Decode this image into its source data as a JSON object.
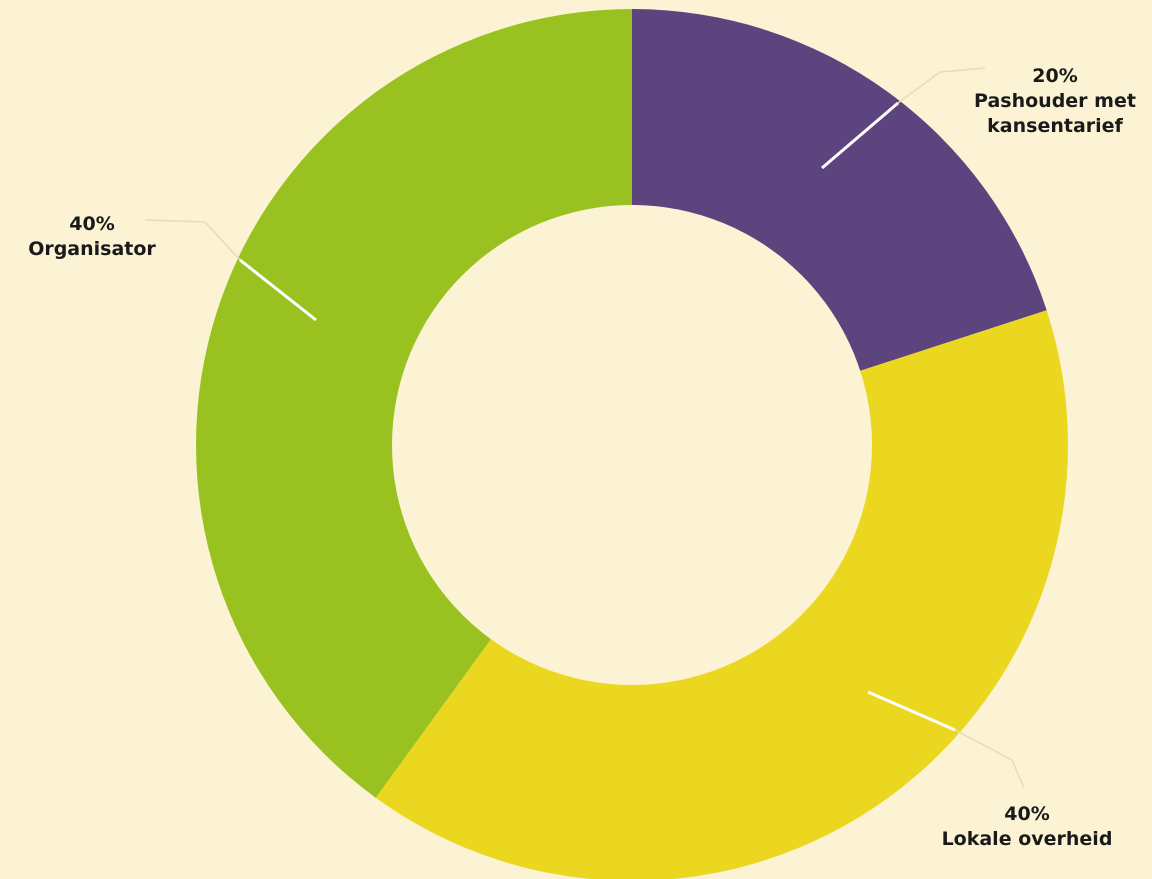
{
  "chart_data": {
    "type": "pie",
    "donut": true,
    "start": "top",
    "direction": "clockwise",
    "slices": [
      {
        "id": "pashouder",
        "value": 20,
        "percent_label": "20%",
        "label_lines": [
          "Pashouder met",
          "kansentarief"
        ],
        "color": "#5d447f"
      },
      {
        "id": "lokale-overheid",
        "value": 40,
        "percent_label": "40%",
        "label_lines": [
          "Lokale overheid"
        ],
        "color": "#ebd720"
      },
      {
        "id": "organisator",
        "value": 40,
        "percent_label": "40%",
        "label_lines": [
          "Organisator"
        ],
        "color": "#99c221"
      }
    ],
    "background_color": "#fbf3d3",
    "leader_color": "#ffffff"
  }
}
